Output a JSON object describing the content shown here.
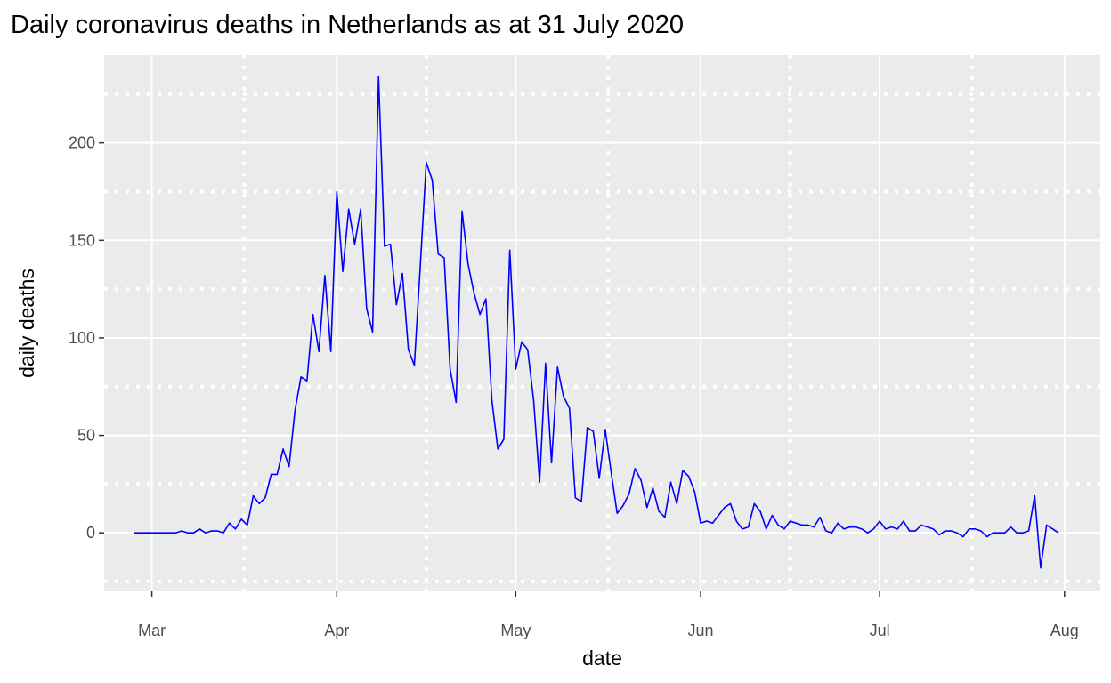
{
  "chart_data": {
    "type": "line",
    "title": "Daily coronavirus deaths in Netherlands as at 31 July 2020",
    "xlabel": "date",
    "ylabel": "daily deaths",
    "x_ticks": [
      {
        "date": "2020-03-01",
        "label": "Mar"
      },
      {
        "date": "2020-04-01",
        "label": "Apr"
      },
      {
        "date": "2020-05-01",
        "label": "May"
      },
      {
        "date": "2020-06-01",
        "label": "Jun"
      },
      {
        "date": "2020-07-01",
        "label": "Jul"
      },
      {
        "date": "2020-08-01",
        "label": "Aug"
      }
    ],
    "y_ticks": [
      0,
      50,
      100,
      150,
      200
    ],
    "xlim": [
      "2020-02-22",
      "2020-08-07"
    ],
    "ylim": [
      -30,
      245
    ],
    "grid": true,
    "minor_grid_style": "dotted",
    "background": "#EBEBEB",
    "line_color": "#0000FF",
    "series": [
      {
        "x": [
          "2020-02-27",
          "2020-02-28",
          "2020-02-29",
          "2020-03-01",
          "2020-03-02",
          "2020-03-03",
          "2020-03-04",
          "2020-03-05",
          "2020-03-06",
          "2020-03-07",
          "2020-03-08",
          "2020-03-09",
          "2020-03-10",
          "2020-03-11",
          "2020-03-12",
          "2020-03-13",
          "2020-03-14",
          "2020-03-15",
          "2020-03-16",
          "2020-03-17",
          "2020-03-18",
          "2020-03-19",
          "2020-03-20",
          "2020-03-21",
          "2020-03-22",
          "2020-03-23",
          "2020-03-24",
          "2020-03-25",
          "2020-03-26",
          "2020-03-27",
          "2020-03-28",
          "2020-03-29",
          "2020-03-30",
          "2020-03-31",
          "2020-04-01",
          "2020-04-02",
          "2020-04-03",
          "2020-04-04",
          "2020-04-05",
          "2020-04-06",
          "2020-04-07",
          "2020-04-08",
          "2020-04-09",
          "2020-04-10",
          "2020-04-11",
          "2020-04-12",
          "2020-04-13",
          "2020-04-14",
          "2020-04-15",
          "2020-04-16",
          "2020-04-17",
          "2020-04-18",
          "2020-04-19",
          "2020-04-20",
          "2020-04-21",
          "2020-04-22",
          "2020-04-23",
          "2020-04-24",
          "2020-04-25",
          "2020-04-26",
          "2020-04-27",
          "2020-04-28",
          "2020-04-29",
          "2020-04-30",
          "2020-05-01",
          "2020-05-02",
          "2020-05-03",
          "2020-05-04",
          "2020-05-05",
          "2020-05-06",
          "2020-05-07",
          "2020-05-08",
          "2020-05-09",
          "2020-05-10",
          "2020-05-11",
          "2020-05-12",
          "2020-05-13",
          "2020-05-14",
          "2020-05-15",
          "2020-05-16",
          "2020-05-17",
          "2020-05-18",
          "2020-05-19",
          "2020-05-20",
          "2020-05-21",
          "2020-05-22",
          "2020-05-23",
          "2020-05-24",
          "2020-05-25",
          "2020-05-26",
          "2020-05-27",
          "2020-05-28",
          "2020-05-29",
          "2020-05-30",
          "2020-05-31",
          "2020-06-01",
          "2020-06-02",
          "2020-06-03",
          "2020-06-04",
          "2020-06-05",
          "2020-06-06",
          "2020-06-07",
          "2020-06-08",
          "2020-06-09",
          "2020-06-10",
          "2020-06-11",
          "2020-06-12",
          "2020-06-13",
          "2020-06-14",
          "2020-06-15",
          "2020-06-16",
          "2020-06-17",
          "2020-06-18",
          "2020-06-19",
          "2020-06-20",
          "2020-06-21",
          "2020-06-22",
          "2020-06-23",
          "2020-06-24",
          "2020-06-25",
          "2020-06-26",
          "2020-06-27",
          "2020-06-28",
          "2020-06-29",
          "2020-06-30",
          "2020-07-01",
          "2020-07-02",
          "2020-07-03",
          "2020-07-04",
          "2020-07-05",
          "2020-07-06",
          "2020-07-07",
          "2020-07-08",
          "2020-07-09",
          "2020-07-10",
          "2020-07-11",
          "2020-07-12",
          "2020-07-13",
          "2020-07-14",
          "2020-07-15",
          "2020-07-16",
          "2020-07-17",
          "2020-07-18",
          "2020-07-19",
          "2020-07-20",
          "2020-07-21",
          "2020-07-22",
          "2020-07-23",
          "2020-07-24",
          "2020-07-25",
          "2020-07-26",
          "2020-07-27",
          "2020-07-28",
          "2020-07-29",
          "2020-07-30",
          "2020-07-31"
        ],
        "values": [
          0,
          0,
          0,
          0,
          0,
          0,
          0,
          0,
          1,
          0,
          0,
          2,
          0,
          1,
          1,
          0,
          5,
          2,
          7,
          4,
          19,
          15,
          18,
          30,
          30,
          43,
          34,
          63,
          80,
          78,
          112,
          93,
          132,
          93,
          175,
          134,
          166,
          148,
          166,
          115,
          103,
          234,
          147,
          148,
          117,
          133,
          94,
          86,
          137,
          190,
          181,
          143,
          141,
          84,
          67,
          165,
          138,
          123,
          112,
          120,
          68,
          43,
          48,
          145,
          84,
          98,
          94,
          68,
          26,
          87,
          36,
          85,
          70,
          64,
          18,
          16,
          54,
          52,
          28,
          53,
          31,
          10,
          14,
          20,
          33,
          27,
          13,
          23,
          11,
          8,
          26,
          15,
          32,
          29,
          21,
          5,
          6,
          5,
          9,
          13,
          15,
          6,
          2,
          3,
          15,
          11,
          2,
          9,
          4,
          2,
          6,
          5,
          4,
          4,
          3,
          8,
          1,
          0,
          5,
          2,
          3,
          3,
          2,
          0,
          2,
          6,
          2,
          3,
          2,
          6,
          1,
          1,
          4,
          3,
          2,
          -1,
          1,
          1,
          0,
          -2,
          2,
          2,
          1,
          -2,
          0,
          0,
          0,
          3,
          0,
          0,
          1,
          19,
          -18,
          4,
          2,
          0
        ]
      }
    ]
  }
}
